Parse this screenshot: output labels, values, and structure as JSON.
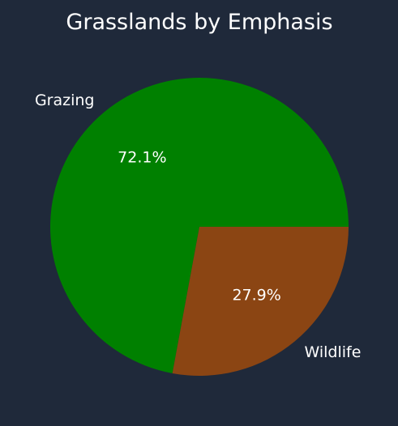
{
  "chart_data": {
    "type": "pie",
    "title": "Grasslands by Emphasis",
    "categories": [
      "Grazing",
      "Wildlife"
    ],
    "values": [
      72.1,
      27.9
    ],
    "percent_labels": [
      "72.1%",
      "27.9%"
    ],
    "colors": [
      "#008000",
      "#8b4513"
    ],
    "start_angle_deg": 0,
    "direction": "counterclockwise",
    "background": "#1f293a",
    "text_color": "#ffffff"
  }
}
